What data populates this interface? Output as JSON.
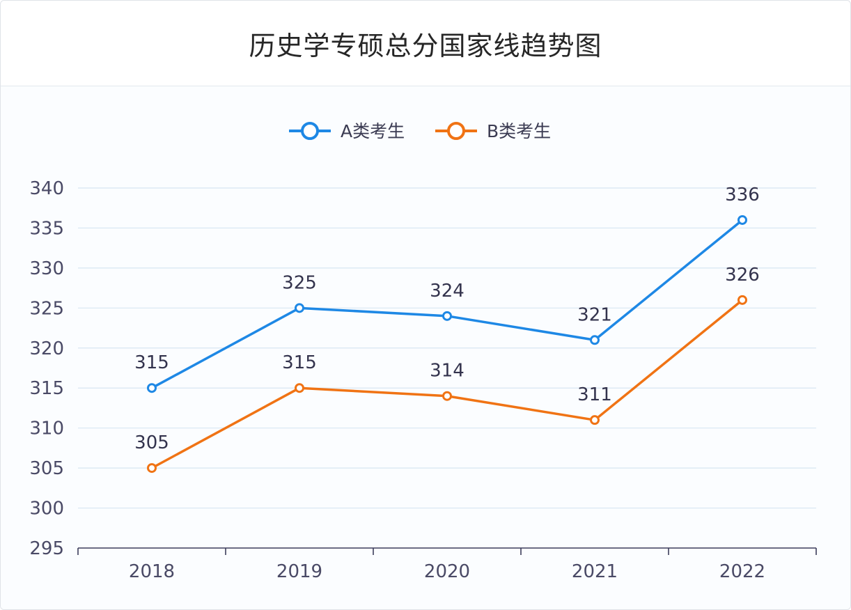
{
  "chart_data": {
    "type": "line",
    "title": "历史学专硕总分国家线趋势图",
    "categories": [
      "2018",
      "2019",
      "2020",
      "2021",
      "2022"
    ],
    "ylim": [
      295,
      340
    ],
    "yticks": [
      295,
      300,
      305,
      310,
      315,
      320,
      325,
      330,
      335,
      340
    ],
    "grid": true,
    "legend_position": "top-center",
    "series": [
      {
        "name": "A类考生",
        "color": "#1e88e5",
        "values": [
          315,
          325,
          324,
          321,
          336
        ]
      },
      {
        "name": "B类考生",
        "color": "#f07314",
        "values": [
          305,
          315,
          314,
          311,
          326
        ]
      }
    ]
  }
}
